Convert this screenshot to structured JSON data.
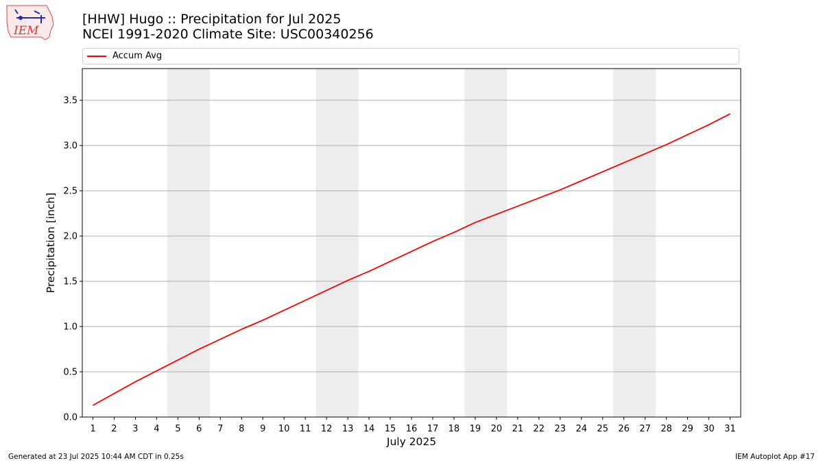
{
  "logo": {
    "text": "IEM",
    "icon": "iowa-state-outline-logo"
  },
  "header": {
    "title_line1": "[HHW] Hugo :: Precipitation for Jul 2025",
    "title_line2": "NCEI 1991-2020 Climate Site: USC00340256"
  },
  "legend": {
    "entries": [
      "Accum Avg"
    ]
  },
  "footer": {
    "left": "Generated at 23 Jul 2025 10:44 AM CDT in 0.25s",
    "right": "IEM Autoplot App #17"
  },
  "chart_data": {
    "type": "line",
    "xlabel": "July 2025",
    "ylabel": "Precipitation [inch]",
    "x": [
      1,
      2,
      3,
      4,
      5,
      6,
      7,
      8,
      9,
      10,
      11,
      12,
      13,
      14,
      15,
      16,
      17,
      18,
      19,
      20,
      21,
      22,
      23,
      24,
      25,
      26,
      27,
      28,
      29,
      30,
      31
    ],
    "series": [
      {
        "name": "Accum Avg",
        "color": "#ff0000",
        "values": [
          0.13,
          0.26,
          0.39,
          0.51,
          0.63,
          0.75,
          0.86,
          0.97,
          1.07,
          1.18,
          1.29,
          1.4,
          1.51,
          1.61,
          1.72,
          1.83,
          1.94,
          2.04,
          2.15,
          2.24,
          2.33,
          2.42,
          2.51,
          2.61,
          2.71,
          2.81,
          2.91,
          3.01,
          3.12,
          3.23,
          3.35
        ]
      }
    ],
    "xlim": [
      0.5,
      31.5
    ],
    "ylim": [
      0,
      3.85
    ],
    "yticks": [
      0.0,
      0.5,
      1.0,
      1.5,
      2.0,
      2.5,
      3.0,
      3.5
    ],
    "ytick_labels": [
      "0.0",
      "0.5",
      "1.0",
      "1.5",
      "2.0",
      "2.5",
      "3.0",
      "3.5"
    ],
    "xticks": [
      1,
      2,
      3,
      4,
      5,
      6,
      7,
      8,
      9,
      10,
      11,
      12,
      13,
      14,
      15,
      16,
      17,
      18,
      19,
      20,
      21,
      22,
      23,
      24,
      25,
      26,
      27,
      28,
      29,
      30,
      31
    ],
    "xtick_labels": [
      "1",
      "2",
      "3",
      "4",
      "5",
      "6",
      "7",
      "8",
      "9",
      "10",
      "11",
      "12",
      "13",
      "14",
      "15",
      "16",
      "17",
      "18",
      "19",
      "20",
      "21",
      "22",
      "23",
      "24",
      "25",
      "26",
      "27",
      "28",
      "29",
      "30",
      "31"
    ],
    "weekend_bands": [
      [
        5,
        6
      ],
      [
        12,
        13
      ],
      [
        19,
        20
      ],
      [
        26,
        27
      ]
    ],
    "band_color": "#ededed",
    "grid": "horizontal",
    "legend_position": "top"
  }
}
